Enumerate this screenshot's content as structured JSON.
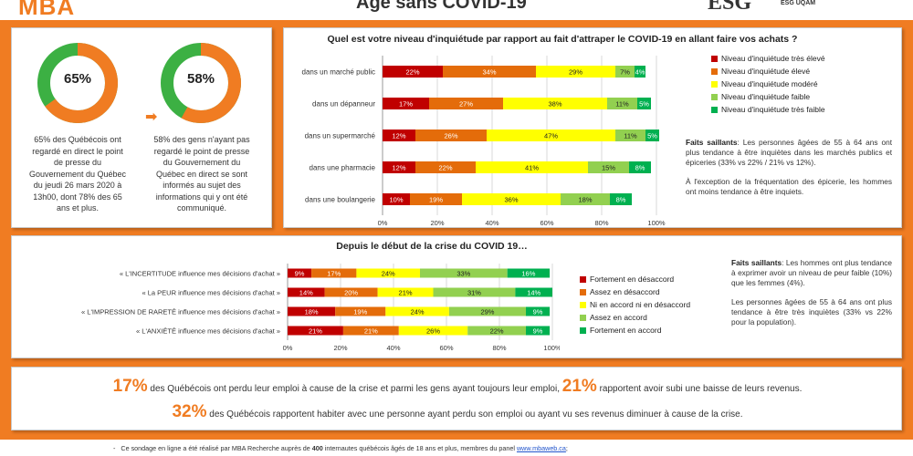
{
  "header": {
    "logo_left": "MBA",
    "title": "Âge sans COVID-19",
    "logo_right": "ESG",
    "logo_right_sub": "ESG UQÀM"
  },
  "left_panel": {
    "donut1": {
      "value": 65,
      "label": "65%",
      "description": "65% des Québécois ont regardé en direct le point de presse du Gouvernement du Québec du jeudi 26 mars 2020 à 13h00, dont 78% des 65 ans et plus.",
      "color": "#f07c22",
      "rest_color": "#3cb043"
    },
    "donut2": {
      "value": 58,
      "label": "58%",
      "description": "58% des gens n'ayant pas regardé le point de presse du Gouvernement du Québec en direct se sont informés au sujet des informations qui y ont été communiqué.",
      "color": "#f07c22",
      "rest_color": "#3cb043"
    },
    "arrow_icon": "arrow-right-icon"
  },
  "chart_data": [
    {
      "type": "bar",
      "orientation": "horizontal-stacked-100",
      "title": "Quel est votre niveau d'inquiétude par rapport au fait d'attraper le COVID-19 en allant faire vos achats ?",
      "categories": [
        "dans un marché public",
        "dans un dépanneur",
        "dans un supermarché",
        "dans une pharmacie",
        "dans une boulangerie"
      ],
      "series": [
        {
          "name": "Niveau d'inquiétude très élevé",
          "color": "#c00000",
          "values": [
            22,
            17,
            12,
            12,
            10
          ]
        },
        {
          "name": "Niveau d'inquiétude élevé",
          "color": "#e46c0a",
          "values": [
            34,
            27,
            26,
            22,
            19
          ]
        },
        {
          "name": "Niveau d'inquiétude modéré",
          "color": "#ffff00",
          "values": [
            29,
            38,
            47,
            41,
            36
          ]
        },
        {
          "name": "Niveau d'inquiétude faible",
          "color": "#92d050",
          "values": [
            7,
            11,
            11,
            15,
            18
          ]
        },
        {
          "name": "Niveau d'inquiétude très faible",
          "color": "#00b050",
          "values": [
            4,
            5,
            5,
            8,
            8
          ]
        }
      ],
      "xlim": [
        0,
        100
      ],
      "xticks": [
        "0%",
        "20%",
        "40%",
        "60%",
        "80%",
        "100%"
      ],
      "legend_position": "right"
    },
    {
      "type": "bar",
      "orientation": "horizontal-stacked-100",
      "title": "Depuis le début de la crise du COVID 19…",
      "categories": [
        "« L'INCERTITUDE influence mes décisions d'achat »",
        "« La PEUR influence mes décisions d'achat »",
        "« L'IMPRESSION DE RARETÉ influence mes décisions d'achat »",
        "« L'ANXIÉTÉ influence mes décisions d'achat »"
      ],
      "series": [
        {
          "name": "Fortement en désaccord",
          "color": "#c00000",
          "values": [
            9,
            14,
            18,
            21
          ]
        },
        {
          "name": "Assez en désaccord",
          "color": "#e46c0a",
          "values": [
            17,
            20,
            19,
            21
          ]
        },
        {
          "name": "Ni en accord ni en désaccord",
          "color": "#ffff00",
          "values": [
            24,
            21,
            24,
            26
          ]
        },
        {
          "name": "Assez en accord",
          "color": "#92d050",
          "values": [
            33,
            31,
            29,
            22
          ]
        },
        {
          "name": "Fortement en accord",
          "color": "#00b050",
          "values": [
            16,
            14,
            9,
            9
          ]
        }
      ],
      "xlim": [
        0,
        100
      ],
      "xticks": [
        "0%",
        "20%",
        "40%",
        "60%",
        "80%",
        "100%"
      ],
      "legend_position": "right"
    }
  ],
  "notes1": {
    "heading": "Faits saillants",
    "p1": ": Les personnes âgées de 55 à 64 ans ont plus tendance à être inquiètes dans les marchés publics et épiceries (33% vs 22% / 21% vs 12%).",
    "p2": "À l'exception de la fréquentation des épicerie, les hommes ont moins tendance à être inquiets."
  },
  "notes2": {
    "heading": "Faits saillants",
    "p1": ": Les hommes ont plus tendance à exprimer avoir un niveau de peur faible (10%) que les femmes (4%).",
    "p2": "Les personnes âgées de 55 à 64 ans ont plus tendance à être très inquiètes (33% vs 22% pour la population)."
  },
  "stats": {
    "line1_big1": "17%",
    "line1_text1": "des Québécois ont perdu leur emploi à cause de la crise et parmi les gens ayant toujours leur emploi,",
    "line1_big2": "21%",
    "line1_text2": "rapportent avoir subi une baisse de leurs revenus.",
    "line2_big": "32%",
    "line2_text": "des Québécois rapportent habiter avec une personne ayant perdu son emploi ou ayant vu ses revenus diminuer à cause de la crise."
  },
  "footer": {
    "bullet": "-",
    "text_pre": "Ce sondage en ligne a été réalisé par MBA Recherche auprès de",
    "count": "400",
    "text_post": "internautes québécois âgés de 18 ans et plus, membres du panel",
    "link": "www.mbaweb.ca",
    "end": ";"
  }
}
